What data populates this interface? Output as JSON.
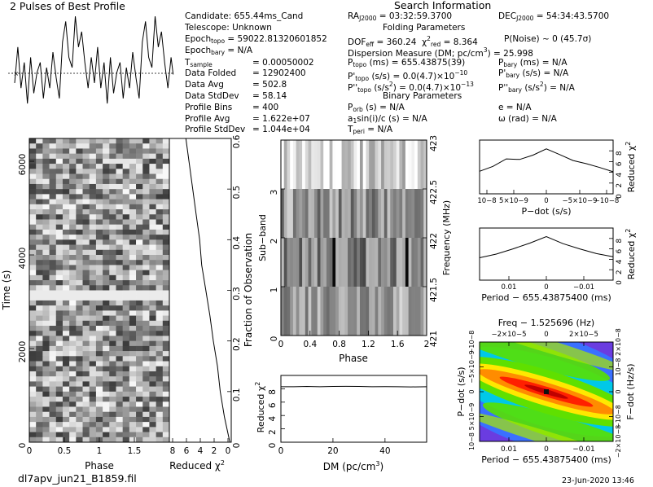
{
  "title": "2 Pulses of Best Profile",
  "header": {
    "search_title": "Search Information",
    "candidate": "Candidate:  655.44ms_Cand",
    "telescope": "Telescope:   Unknown",
    "epoch_topo_val": " = 59022.81320601852",
    "epoch_bary_val": " = N/A",
    "ra_val": " = 03:32:59.3700",
    "dec_val": " = 54:34:43.5700",
    "folding_title": "Folding Parameters",
    "binary_title": "Binary Parameters",
    "dof_val": " = 360.24",
    "chi_val": " = 8.364",
    "pnoise": "P(Noise) ~ 0    (45.7σ)",
    "dm_text": "Dispersion Measure (DM; pc/cm",
    "dm_val": ") = 25.998",
    "ptopo_val": " (ms)   =  655.43875(39)",
    "pbary_val": " (ms) = N/A",
    "pdtopo_val": " (s/s) = 0.0(4.7)×10",
    "pdtopo_exp": "−10",
    "pdbary_val": " (s/s) = N/A",
    "pddtopo_val": " (s/s",
    "pddtopo_val2": ") = 0.0(4.7)×10",
    "pddtopo_exp": "−13",
    "pddbary_val": " (s/s",
    "pddbary_val2": ") = N/A",
    "porb_val": " (s) = N/A",
    "asini_val": "sin(i)/c (s) = N/A",
    "tperi_val": " = N/A",
    "ecc": "e = N/A",
    "omega": "ω (rad) = N/A",
    "stats_labels": [
      "T",
      "Data Folded",
      "Data Avg",
      "Data StdDev",
      "Profile Bins",
      "Profile Avg",
      "Profile StdDev"
    ],
    "stats_values": [
      "=   0.00050002",
      "=   12902400",
      "=   502.8",
      "=   58.14",
      "=   400",
      "=   1.622e+07",
      "=   1.044e+04"
    ]
  },
  "footer": {
    "filename": "dl7apv_jun21_B1859.fil",
    "date": "23-Jun-2020  13:46"
  },
  "chart_data": [
    {
      "type": "line",
      "title": "2 Pulses of Best Profile",
      "x": [
        0,
        0.04,
        0.08,
        0.12,
        0.16,
        0.2,
        0.24,
        0.28,
        0.32,
        0.36,
        0.4,
        0.44,
        0.48,
        0.52,
        0.56,
        0.6,
        0.64,
        0.68,
        0.72,
        0.76,
        0.8,
        0.84,
        0.88,
        0.92,
        0.96,
        1.0
      ],
      "values": [
        0.35,
        0.7,
        0.3,
        0.55,
        0.15,
        0.6,
        0.25,
        0.45,
        0.55,
        0.2,
        0.5,
        0.3,
        0.65,
        0.4,
        0.2,
        0.75,
        0.95,
        0.6,
        0.5,
        1.0,
        0.7,
        0.85,
        0.55,
        0.3,
        0.6,
        0.35
      ],
      "xlim": [
        0,
        2
      ]
    },
    {
      "type": "heatmap",
      "xlabel": "Phase",
      "ylabel": "Time (s)",
      "xlim": [
        0,
        2
      ],
      "ylim": [
        0,
        6450
      ],
      "xticks": [
        "0",
        "0.5",
        "1",
        "1.5"
      ],
      "yticks": [
        "0",
        "2000",
        "4000",
        "6000"
      ]
    },
    {
      "type": "line",
      "xlabel": "Reduced χ",
      "ylabel": "Fraction of Observation",
      "xticks": [
        "8",
        "6",
        "4",
        "2",
        "0"
      ],
      "yticks": [
        "0",
        "0.1",
        "0.2",
        "0.3",
        "0.4",
        "0.5",
        "0.6"
      ],
      "fraction": [
        0,
        0.05,
        0.1,
        0.15,
        0.2,
        0.25,
        0.3,
        0.35,
        0.4,
        0.45,
        0.5,
        0.55,
        0.6
      ],
      "chi": [
        0.2,
        1.0,
        1.6,
        2.0,
        2.6,
        3.1,
        3.7,
        4.3,
        4.6,
        5.1,
        5.6,
        6.1,
        6.6
      ]
    },
    {
      "type": "heatmap",
      "xlabel": "Phase",
      "ylabel": "Sub−band",
      "y2label": "Frequency (MHz)",
      "xticks": [
        "0",
        "0.4",
        "0.8",
        "1.2",
        "1.6",
        "2"
      ],
      "yticks": [
        "0",
        "1",
        "2",
        "3"
      ],
      "y2ticks": [
        "421",
        "421.5",
        "422",
        "422.5",
        "423"
      ]
    },
    {
      "type": "line",
      "xlabel": "DM (pc/cm",
      "ylabel": "Reduced χ",
      "xlim": [
        0,
        56
      ],
      "ylim": [
        0,
        10
      ],
      "xticks": [
        "0",
        "20",
        "40"
      ],
      "yticks": [
        "0",
        "2",
        "4",
        "6",
        "8"
      ],
      "x": [
        0,
        5,
        10,
        15,
        20,
        25,
        30,
        35,
        40,
        45,
        50,
        56
      ],
      "values": [
        8.3,
        8.3,
        8.35,
        8.3,
        8.35,
        8.36,
        8.35,
        8.3,
        8.32,
        8.3,
        8.28,
        8.3
      ]
    },
    {
      "type": "line",
      "xlabel": "P−dot (s/s)",
      "ylabel": "Reduced χ",
      "xticks": [
        "10−8",
        "5×10−9",
        "0",
        "−5×10−9",
        "−10−8"
      ],
      "yticks": [
        "0",
        "2",
        "4",
        "6",
        "8"
      ],
      "x": [
        1e-08,
        8e-09,
        6e-09,
        4e-09,
        2e-09,
        0,
        -2e-09,
        -4e-09,
        -6e-09,
        -8e-09,
        -1e-08
      ],
      "values": [
        4.2,
        5.1,
        6.5,
        6.4,
        7.2,
        8.36,
        7.3,
        6.2,
        5.6,
        4.9,
        4.1
      ]
    },
    {
      "type": "line",
      "xlabel": "Period − 655.43875400 (ms)",
      "ylabel": "Reduced χ",
      "xticks": [
        "0.01",
        "0",
        "−0.01"
      ],
      "yticks": [
        "0",
        "2",
        "4",
        "6",
        "8"
      ],
      "x": [
        0.02,
        0.015,
        0.01,
        0.005,
        0,
        -0.005,
        -0.01,
        -0.015,
        -0.02
      ],
      "values": [
        4.3,
        5.0,
        6.0,
        7.1,
        8.36,
        7.0,
        6.0,
        5.1,
        4.5
      ]
    },
    {
      "type": "heatmap",
      "title": "Freq − 1.525696 (Hz)",
      "xlabel": "Period − 655.43875400 (ms)",
      "ylabel": "P−dot (s/s)",
      "y2label": "F−dot (Hz/s)",
      "xticks": [
        "0.01",
        "0",
        "−0.01"
      ],
      "x2ticks": [
        "−2×10−5",
        "0",
        "2×10−5"
      ],
      "yticks": [
        "10−8",
        "5×10−9",
        "0",
        "−5×10−9",
        "−10−8"
      ],
      "y2ticks": [
        "−2×10−8",
        "−10−8",
        "0",
        "10−8",
        "2×10−8"
      ]
    }
  ]
}
